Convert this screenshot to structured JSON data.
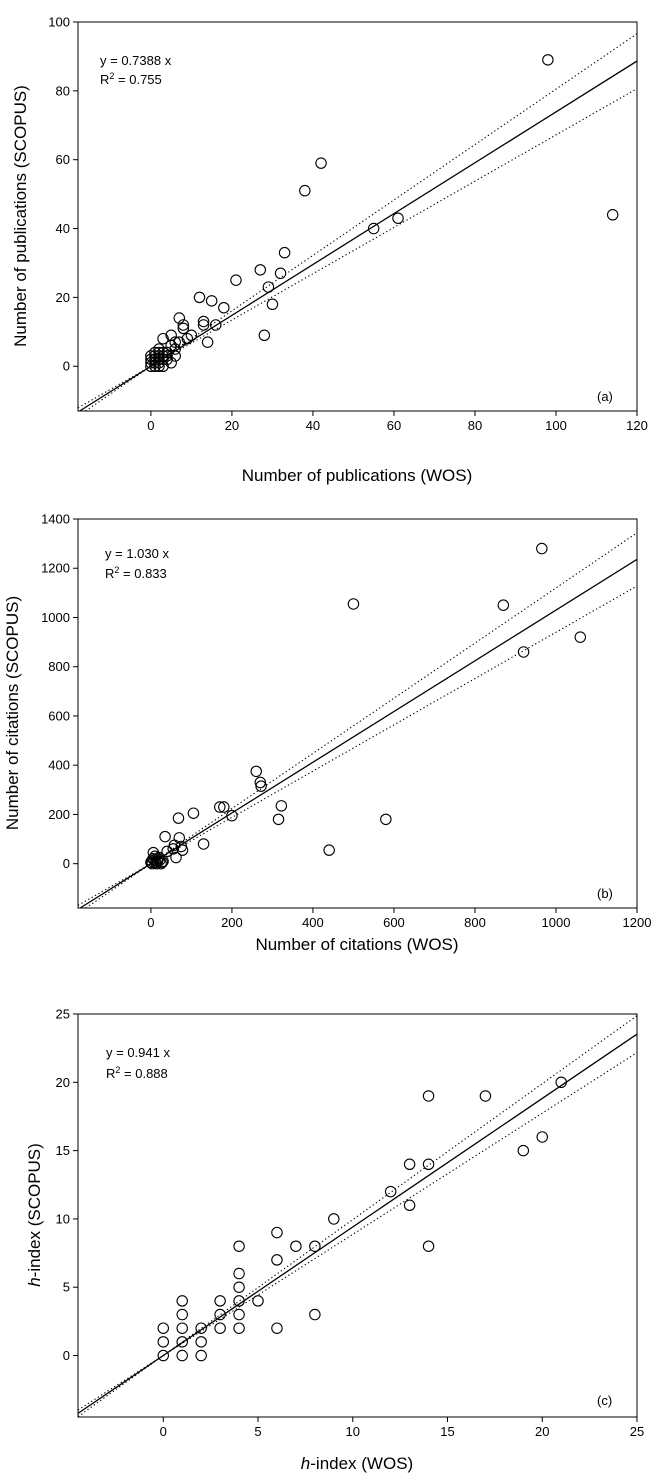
{
  "chart_data": [
    {
      "type": "scatter",
      "panel_label": "(a)",
      "xlabel": "Number of publications (WOS)",
      "ylabel": "Number of publications (SCOPUS)",
      "xlim": [
        -18,
        120
      ],
      "ylim": [
        -13,
        100
      ],
      "xticks": [
        0,
        20,
        40,
        60,
        80,
        100,
        120
      ],
      "yticks": [
        0,
        20,
        40,
        60,
        80,
        100
      ],
      "equation": "y = 0.7388 x",
      "r2_prefix": "R",
      "r2_sup": "2",
      "r2_value": " = 0.755",
      "slope": 0.7388,
      "ci_slopes": [
        0.805,
        0.672
      ],
      "x": [
        0,
        0,
        0,
        0,
        1,
        1,
        1,
        1,
        1,
        2,
        2,
        2,
        2,
        2,
        2,
        3,
        3,
        3,
        3,
        3,
        4,
        4,
        4,
        5,
        5,
        5,
        6,
        6,
        6,
        7,
        7,
        8,
        8,
        9,
        10,
        12,
        13,
        13,
        14,
        15,
        16,
        18,
        21,
        27,
        28,
        29,
        30,
        32,
        33,
        38,
        42,
        55,
        61,
        98,
        114
      ],
      "y": [
        0,
        1,
        2,
        3,
        0,
        1,
        2,
        3,
        4,
        0,
        1,
        2,
        3,
        4,
        5,
        0,
        2,
        3,
        4,
        8,
        2,
        3,
        4,
        1,
        6,
        9,
        3,
        5,
        7,
        7,
        14,
        11,
        12,
        8,
        9,
        20,
        12,
        13,
        7,
        19,
        12,
        17,
        25,
        28,
        9,
        23,
        18,
        27,
        33,
        51,
        59,
        40,
        43,
        89,
        44
      ]
    },
    {
      "type": "scatter",
      "panel_label": "(b)",
      "xlabel": "Number of citations (WOS)",
      "ylabel": "Number of citations (SCOPUS)",
      "xlim": [
        -180,
        1200
      ],
      "ylim": [
        -180,
        1400
      ],
      "xticks": [
        0,
        200,
        400,
        600,
        800,
        1000,
        1200
      ],
      "yticks": [
        0,
        200,
        400,
        600,
        800,
        1000,
        1200,
        1400
      ],
      "equation": "y = 1.030 x",
      "r2_prefix": "R",
      "r2_sup": "2",
      "r2_value": " = 0.833",
      "slope": 1.03,
      "ci_slopes": [
        1.12,
        0.94
      ],
      "x": [
        0,
        2,
        3,
        5,
        6,
        8,
        10,
        12,
        14,
        16,
        18,
        20,
        22,
        25,
        28,
        30,
        35,
        40,
        55,
        58,
        62,
        68,
        70,
        75,
        78,
        105,
        130,
        170,
        180,
        200,
        260,
        270,
        272,
        315,
        322,
        440,
        500,
        580,
        870,
        920,
        965,
        1060
      ],
      "y": [
        5,
        10,
        0,
        20,
        45,
        15,
        30,
        5,
        0,
        10,
        20,
        25,
        15,
        0,
        5,
        10,
        110,
        50,
        60,
        75,
        25,
        185,
        105,
        70,
        55,
        205,
        80,
        230,
        230,
        195,
        375,
        330,
        315,
        180,
        235,
        55,
        1055,
        180,
        1050,
        860,
        1280,
        920
      ]
    },
    {
      "type": "scatter",
      "panel_label": "(c)",
      "xlabel_italic": "h",
      "xlabel": "-index (WOS)",
      "ylabel_italic": "h",
      "ylabel": "-index (SCOPUS)",
      "xlim": [
        -4.5,
        25
      ],
      "ylim": [
        -4.5,
        25
      ],
      "xticks": [
        0,
        5,
        10,
        15,
        20,
        25
      ],
      "yticks": [
        0,
        5,
        10,
        15,
        20,
        25
      ],
      "equation": "y = 0.941 x",
      "r2_prefix": "R",
      "r2_sup": "2",
      "r2_value": " = 0.888",
      "slope": 0.941,
      "ci_slopes": [
        0.995,
        0.887
      ],
      "x": [
        0,
        0,
        0,
        1,
        1,
        1,
        1,
        1,
        2,
        2,
        2,
        3,
        3,
        3,
        4,
        4,
        4,
        4,
        4,
        4,
        5,
        6,
        6,
        6,
        7,
        8,
        8,
        9,
        12,
        13,
        13,
        14,
        14,
        14,
        17,
        19,
        20,
        21
      ],
      "y": [
        0,
        1,
        2,
        0,
        1,
        2,
        3,
        4,
        0,
        1,
        2,
        2,
        3,
        4,
        2,
        3,
        4,
        5,
        6,
        8,
        4,
        2,
        7,
        9,
        8,
        3,
        8,
        10,
        12,
        11,
        14,
        8,
        14,
        19,
        19,
        15,
        16,
        20
      ]
    }
  ]
}
